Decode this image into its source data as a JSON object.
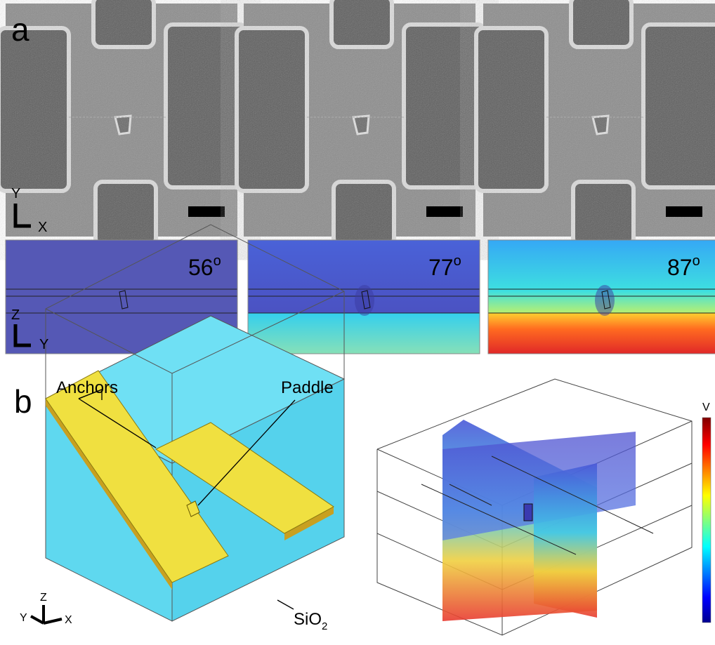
{
  "panel_a": {
    "label": "a",
    "sem_axes": {
      "vertical": "Y",
      "horizontal": "X"
    },
    "sim_axes": {
      "vertical": "Z",
      "horizontal": "Y"
    },
    "angles": [
      {
        "value": "56",
        "unit": "o"
      },
      {
        "value": "77",
        "unit": "o"
      },
      {
        "value": "87",
        "unit": "o"
      }
    ]
  },
  "panel_b": {
    "label": "b",
    "annotations": {
      "anchors": "Anchors",
      "paddle": "Paddle",
      "substrate": "SiO",
      "substrate_subscript": "2"
    },
    "axes": {
      "z": "Z",
      "y": "Y",
      "x": "X"
    },
    "colorbar_label": "V"
  }
}
